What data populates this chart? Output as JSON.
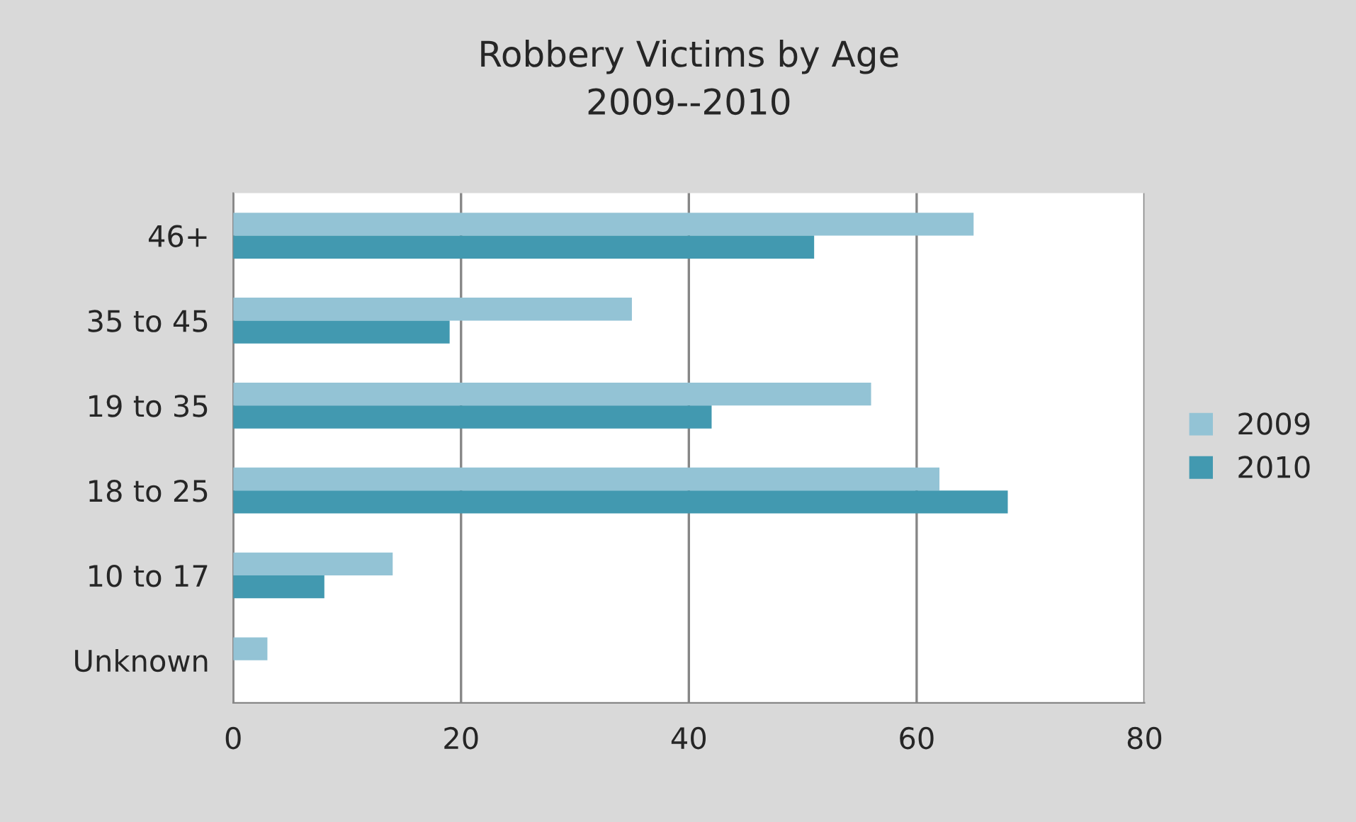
{
  "chart_data": {
    "type": "bar",
    "orientation": "horizontal",
    "title": "Robbery Victims by Age\n2009--2010",
    "categories": [
      "46+",
      "35 to 45",
      "19 to 35",
      "18 to 25",
      "10 to 17",
      "Unknown"
    ],
    "series": [
      {
        "name": "2009",
        "color": "#93c3d5",
        "values": [
          65,
          35,
          56,
          62,
          14,
          3
        ]
      },
      {
        "name": "2010",
        "color": "#4299b0",
        "values": [
          51,
          19,
          42,
          68,
          8,
          null
        ]
      }
    ],
    "xlim": [
      0,
      80
    ],
    "xticks": [
      0,
      20,
      40,
      60,
      80
    ],
    "grid": "x",
    "legend": "right"
  }
}
